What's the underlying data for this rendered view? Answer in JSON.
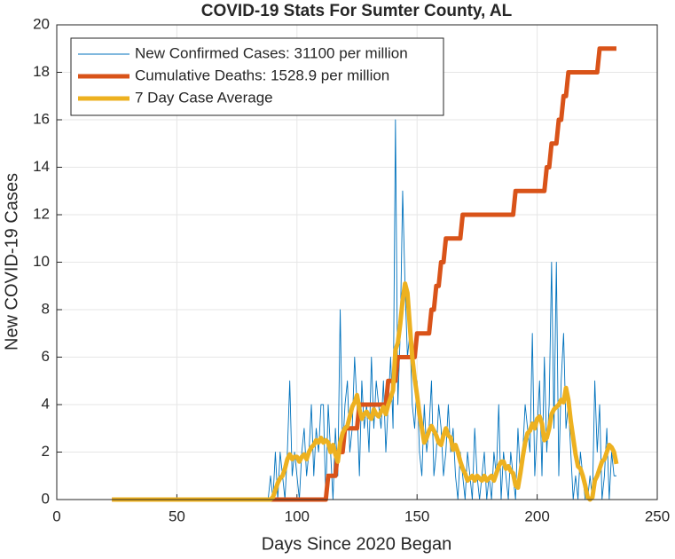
{
  "chart_data": {
    "type": "line",
    "title": "COVID-19 Stats For Sumter County, AL",
    "x_label": "Days Since 2020 Began",
    "y_label": "New COVID-19 Cases",
    "xlim": [
      0,
      250
    ],
    "xticks": [
      0,
      50,
      100,
      150,
      200,
      250
    ],
    "ylim": [
      0,
      20
    ],
    "yticks": [
      0,
      2,
      4,
      6,
      8,
      10,
      12,
      14,
      16,
      18,
      20
    ],
    "grid": true,
    "legend": "upper left",
    "x": [
      23,
      24,
      25,
      26,
      27,
      28,
      29,
      30,
      31,
      32,
      33,
      34,
      35,
      36,
      37,
      38,
      39,
      40,
      41,
      42,
      43,
      44,
      45,
      46,
      47,
      48,
      49,
      50,
      51,
      52,
      53,
      54,
      55,
      56,
      57,
      58,
      59,
      60,
      61,
      62,
      63,
      64,
      65,
      66,
      67,
      68,
      69,
      70,
      71,
      72,
      73,
      74,
      75,
      76,
      77,
      78,
      79,
      80,
      81,
      82,
      83,
      84,
      85,
      86,
      87,
      88,
      89,
      90,
      91,
      92,
      93,
      94,
      95,
      96,
      97,
      98,
      99,
      100,
      101,
      102,
      103,
      104,
      105,
      106,
      107,
      108,
      109,
      110,
      111,
      112,
      113,
      114,
      115,
      116,
      117,
      118,
      119,
      120,
      121,
      122,
      123,
      124,
      125,
      126,
      127,
      128,
      129,
      130,
      131,
      132,
      133,
      134,
      135,
      136,
      137,
      138,
      139,
      140,
      141,
      142,
      143,
      144,
      145,
      146,
      147,
      148,
      149,
      150,
      151,
      152,
      153,
      154,
      155,
      156,
      157,
      158,
      159,
      160,
      161,
      162,
      163,
      164,
      165,
      166,
      167,
      168,
      169,
      170,
      171,
      172,
      173,
      174,
      175,
      176,
      177,
      178,
      179,
      180,
      181,
      182,
      183,
      184,
      185,
      186,
      187,
      188,
      189,
      190,
      191,
      192,
      193,
      194,
      195,
      196,
      197,
      198,
      199,
      200,
      201,
      202,
      203,
      204,
      205,
      206,
      207,
      208,
      209,
      210,
      211,
      212,
      213,
      214,
      215,
      216,
      217,
      218,
      219,
      220,
      221,
      222,
      223,
      224,
      225,
      226,
      227,
      228,
      229,
      230,
      231,
      232,
      233
    ],
    "series": [
      {
        "name": "New Confirmed Cases: 31100 per million",
        "color": "#0072BD",
        "width": 0.9,
        "values": [
          0,
          0,
          0,
          0,
          0,
          0,
          0,
          0,
          0,
          0,
          0,
          0,
          0,
          0,
          0,
          0,
          0,
          0,
          0,
          0,
          0,
          0,
          0,
          0,
          0,
          0,
          0,
          0,
          0,
          0,
          0,
          0,
          0,
          0,
          0,
          0,
          0,
          0,
          0,
          0,
          0,
          0,
          0,
          0,
          0,
          0,
          0,
          0,
          0,
          0,
          0,
          0,
          0,
          0,
          0,
          0,
          0,
          0,
          0,
          0,
          0,
          0,
          0,
          0,
          0,
          0,
          1,
          0,
          2,
          0,
          2,
          1,
          0,
          2,
          5,
          1,
          2,
          1,
          0,
          2,
          3,
          1,
          2,
          4,
          1,
          3,
          2,
          4,
          4,
          0,
          4,
          2,
          0,
          3,
          1,
          8,
          2,
          4,
          5,
          2,
          3,
          6,
          4,
          1,
          5,
          3,
          4,
          2,
          6,
          3,
          5,
          4,
          3,
          5,
          2,
          4,
          6,
          3,
          16,
          4,
          7,
          13,
          9,
          6,
          7,
          4,
          3,
          5,
          2,
          1,
          4,
          2,
          3,
          5,
          1,
          2,
          4,
          3,
          1,
          2,
          4,
          2,
          3,
          1,
          0,
          2,
          1,
          0,
          2,
          1,
          0,
          3,
          1,
          0,
          1,
          2,
          0,
          1,
          0,
          2,
          1,
          4,
          0,
          2,
          1,
          0,
          2,
          1,
          0,
          3,
          1,
          2,
          4,
          3,
          2,
          7,
          1,
          3,
          5,
          1,
          6,
          2,
          4,
          10,
          3,
          10,
          1,
          5,
          7,
          3,
          4,
          2,
          0,
          1,
          0,
          2,
          1,
          0,
          0,
          1,
          0,
          5,
          2,
          4,
          0,
          1,
          3,
          0,
          2,
          1,
          1
        ]
      },
      {
        "name": "Cumulative Deaths: 1528.9 per million",
        "color": "#D95319",
        "width": 5,
        "values": [
          0,
          0,
          0,
          0,
          0,
          0,
          0,
          0,
          0,
          0,
          0,
          0,
          0,
          0,
          0,
          0,
          0,
          0,
          0,
          0,
          0,
          0,
          0,
          0,
          0,
          0,
          0,
          0,
          0,
          0,
          0,
          0,
          0,
          0,
          0,
          0,
          0,
          0,
          0,
          0,
          0,
          0,
          0,
          0,
          0,
          0,
          0,
          0,
          0,
          0,
          0,
          0,
          0,
          0,
          0,
          0,
          0,
          0,
          0,
          0,
          0,
          0,
          0,
          0,
          0,
          0,
          0,
          0,
          0,
          0,
          0,
          0,
          0,
          0,
          0,
          0,
          0,
          0,
          0,
          0,
          0,
          0,
          0,
          0,
          0,
          0,
          0,
          0,
          0,
          0,
          1,
          1,
          1,
          1,
          2,
          2,
          2,
          3,
          3,
          3,
          3,
          3,
          3,
          4,
          4,
          4,
          4,
          4,
          4,
          4,
          4,
          4,
          4,
          4,
          4,
          5,
          5,
          5,
          5,
          6,
          6,
          6,
          6,
          6,
          6,
          6,
          6,
          7,
          7,
          7,
          7,
          7,
          7,
          8,
          8,
          9,
          9,
          10,
          10,
          11,
          11,
          11,
          11,
          11,
          11,
          11,
          12,
          12,
          12,
          12,
          12,
          12,
          12,
          12,
          12,
          12,
          12,
          12,
          12,
          12,
          12,
          12,
          12,
          12,
          12,
          12,
          12,
          12,
          13,
          13,
          13,
          13,
          13,
          13,
          13,
          13,
          13,
          13,
          13,
          13,
          13,
          14,
          14,
          15,
          15,
          15,
          16,
          16,
          17,
          17,
          18,
          18,
          18,
          18,
          18,
          18,
          18,
          18,
          18,
          18,
          18,
          18,
          18,
          19,
          19,
          19,
          19,
          19,
          19,
          19,
          19
        ]
      },
      {
        "name": "7 Day Case Average",
        "color": "#EDB120",
        "width": 5,
        "values": [
          0,
          0,
          0,
          0,
          0,
          0,
          0,
          0,
          0,
          0,
          0,
          0,
          0,
          0,
          0,
          0,
          0,
          0,
          0,
          0,
          0,
          0,
          0,
          0,
          0,
          0,
          0,
          0,
          0,
          0,
          0,
          0,
          0,
          0,
          0,
          0,
          0,
          0,
          0,
          0,
          0,
          0,
          0,
          0,
          0,
          0,
          0,
          0,
          0,
          0,
          0,
          0,
          0,
          0,
          0,
          0,
          0,
          0,
          0,
          0,
          0,
          0,
          0,
          0,
          0,
          0,
          0,
          0.1,
          0.4,
          0.7,
          0.9,
          1.0,
          1.3,
          1.7,
          1.9,
          1.7,
          1.8,
          1.8,
          1.6,
          1.8,
          1.9,
          1.7,
          2.0,
          2.2,
          2.3,
          2.5,
          2.4,
          2.6,
          2.4,
          2.5,
          2.4,
          2.0,
          2.3,
          1.9,
          1.6,
          2.4,
          2.8,
          3.0,
          3.1,
          3.5,
          3.9,
          4.1,
          4.4,
          3.8,
          3.4,
          3.6,
          3.7,
          3.5,
          3.4,
          3.8,
          3.6,
          3.5,
          3.7,
          3.9,
          3.6,
          4.0,
          4.3,
          4.6,
          6.3,
          6.6,
          7.4,
          8.4,
          9.1,
          8.7,
          7.3,
          6.0,
          5.1,
          4.4,
          3.6,
          3.0,
          2.4,
          2.6,
          2.9,
          3.1,
          2.9,
          2.7,
          2.4,
          2.3,
          2.7,
          3.0,
          2.7,
          2.6,
          2.1,
          2.3,
          2.0,
          1.6,
          1.3,
          1.1,
          0.8,
          0.9,
          1.0,
          0.8,
          1.0,
          0.9,
          0.8,
          1.0,
          0.8,
          0.9,
          1.0,
          0.8,
          1.1,
          1.4,
          1.6,
          1.6,
          1.3,
          1.4,
          1.2,
          1.1,
          0.6,
          0.5,
          1.1,
          1.8,
          2.4,
          2.8,
          2.9,
          3.2,
          3.0,
          3.4,
          3.5,
          3.2,
          2.5,
          2.6,
          3.0,
          3.6,
          3.8,
          3.9,
          4.0,
          4.2,
          4.1,
          4.7,
          4.2,
          3.3,
          2.6,
          1.9,
          1.4,
          1.3,
          1.0,
          0.6,
          0.1,
          0.0,
          0.1,
          0.8,
          1.0,
          1.3,
          1.6,
          1.7,
          2.0,
          2.3,
          2.2,
          2.0,
          1.5
        ]
      }
    ]
  }
}
